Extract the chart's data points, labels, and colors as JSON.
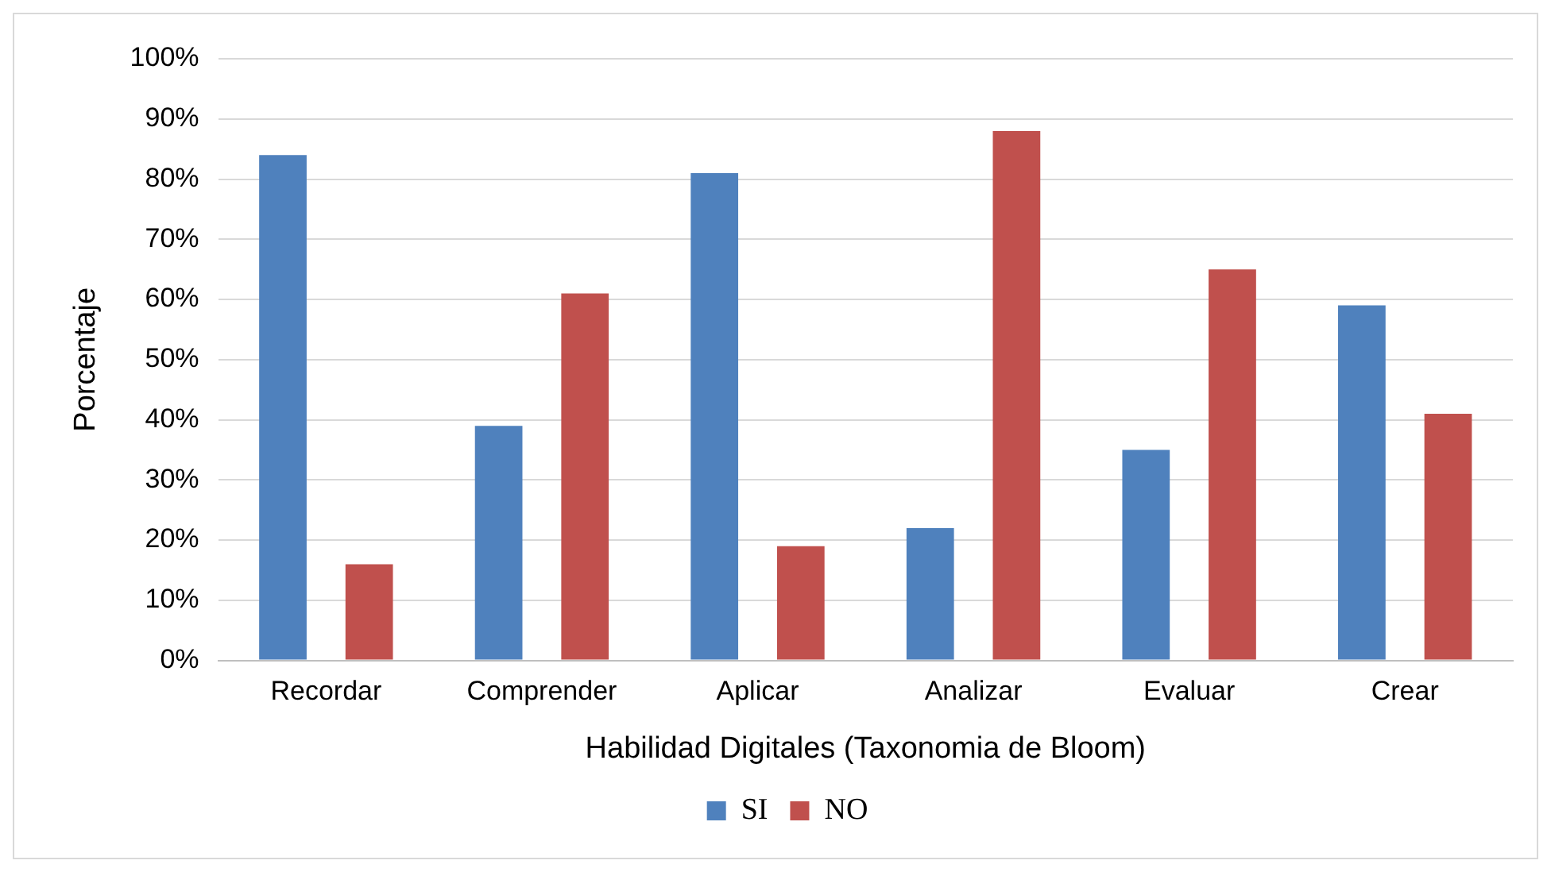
{
  "chart_data": {
    "type": "bar",
    "xlabel": "Habilidad Digitales (Taxonomia de Bloom)",
    "ylabel": "Porcentaje",
    "categories": [
      "Recordar",
      "Comprender",
      "Aplicar",
      "Analizar",
      "Evaluar",
      "Crear"
    ],
    "series": [
      {
        "name": "SI",
        "color": "#4f81bd",
        "values": [
          84,
          39,
          81,
          22,
          35,
          59
        ]
      },
      {
        "name": "NO",
        "color": "#c0504d",
        "values": [
          16,
          61,
          19,
          88,
          65,
          41
        ]
      }
    ],
    "ylim": [
      0,
      100
    ],
    "yticks": [
      {
        "value": 0,
        "label": "0%"
      },
      {
        "value": 10,
        "label": "10%"
      },
      {
        "value": 20,
        "label": "20%"
      },
      {
        "value": 30,
        "label": "30%"
      },
      {
        "value": 40,
        "label": "40%"
      },
      {
        "value": 50,
        "label": "50%"
      },
      {
        "value": 60,
        "label": "60%"
      },
      {
        "value": 70,
        "label": "70%"
      },
      {
        "value": 80,
        "label": "80%"
      },
      {
        "value": 90,
        "label": "90%"
      },
      {
        "value": 100,
        "label": "100%"
      }
    ],
    "grid": "y",
    "legend": "bottom"
  }
}
